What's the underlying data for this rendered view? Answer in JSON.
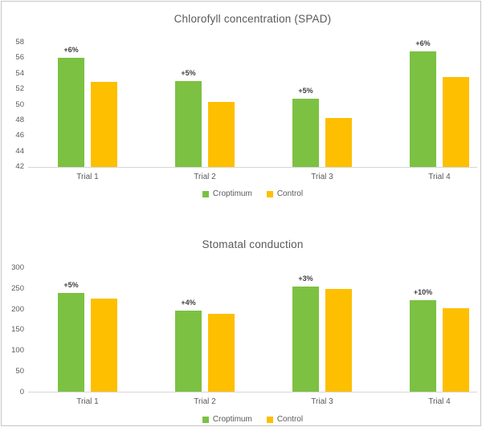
{
  "page": {
    "background": "#ffffff",
    "frame_border": "#c6c6c6"
  },
  "colors": {
    "croptimum": "#7cc142",
    "control": "#fdbf00",
    "axis_line": "#d6d6d6",
    "label_text": "#595959",
    "data_label_text": "#3f3f3f"
  },
  "legend": {
    "items": [
      {
        "label": "Croptimum",
        "color": "#7cc142"
      },
      {
        "label": "Control",
        "color": "#fdbf00"
      }
    ]
  },
  "chart_data": [
    {
      "type": "bar",
      "title": "Chlorofyll concentration (SPAD)",
      "categories": [
        "Trial 1",
        "Trial 2",
        "Trial 3",
        "Trial 4"
      ],
      "series": [
        {
          "name": "Croptimum",
          "color": "#7cc142",
          "values": [
            56.0,
            53.0,
            50.7,
            56.8
          ]
        },
        {
          "name": "Control",
          "color": "#fdbf00",
          "values": [
            52.9,
            50.3,
            48.2,
            53.5
          ]
        }
      ],
      "data_labels": [
        "+6%",
        "+5%",
        "+5%",
        "+6%"
      ],
      "ylim": [
        42,
        58
      ],
      "yticks": [
        42,
        44,
        46,
        48,
        50,
        52,
        54,
        56,
        58
      ],
      "grid": false,
      "legend_position": "bottom",
      "xlabel": "",
      "ylabel": ""
    },
    {
      "type": "bar",
      "title": "Stomatal conduction",
      "categories": [
        "Trial 1",
        "Trial 2",
        "Trial 3",
        "Trial 4"
      ],
      "series": [
        {
          "name": "Croptimum",
          "color": "#7cc142",
          "values": [
            238,
            196,
            255,
            222
          ]
        },
        {
          "name": "Control",
          "color": "#fdbf00",
          "values": [
            226,
            188,
            248,
            202
          ]
        }
      ],
      "data_labels": [
        "+5%",
        "+4%",
        "+3%",
        "+10%"
      ],
      "ylim": [
        0,
        300
      ],
      "yticks": [
        0,
        50,
        100,
        150,
        200,
        250,
        300
      ],
      "grid": false,
      "legend_position": "bottom",
      "xlabel": "",
      "ylabel": ""
    }
  ]
}
